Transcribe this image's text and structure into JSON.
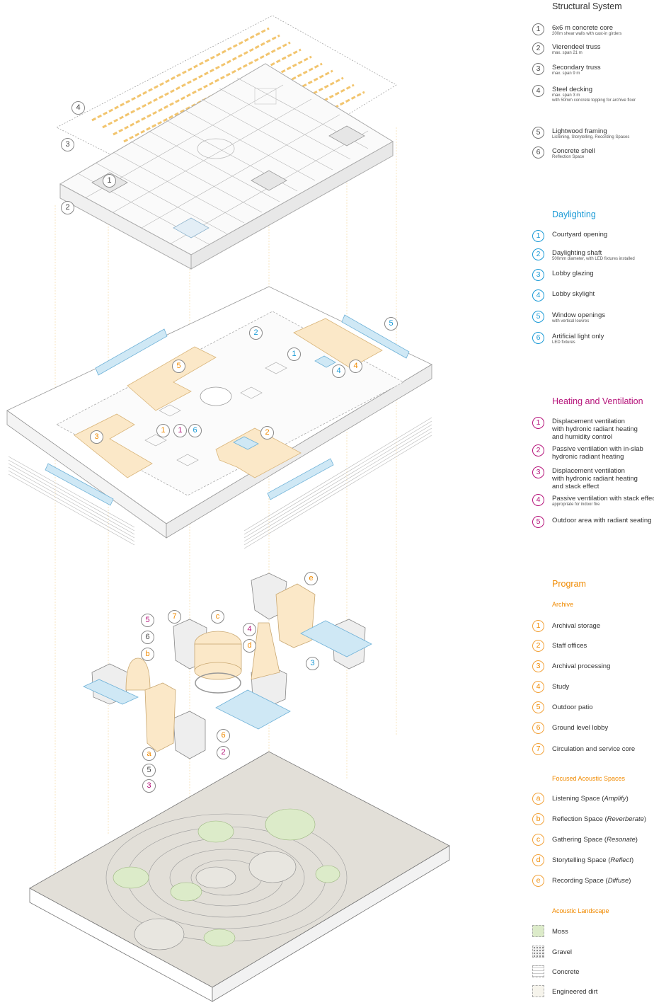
{
  "colors": {
    "structure": "#777777",
    "daylight": "#1a9ad6",
    "heating": "#b5137a",
    "program": "#f08a00",
    "highlight_fill": "#fbe8c8",
    "glass_fill": "#cfe8f5",
    "moss": "#dcebc9",
    "ground": "#d9d6cf"
  },
  "legend": {
    "structural": {
      "title": "Structural System",
      "items": [
        {
          "num": "1",
          "label": "6x6 m concrete core",
          "note": "200m shear walls with cast-in girders"
        },
        {
          "num": "2",
          "label": "Vierendeel truss",
          "note": "max. span 21 m"
        },
        {
          "num": "3",
          "label": "Secondary truss",
          "note": "max. span 9 m"
        },
        {
          "num": "4",
          "label": "Steel decking",
          "note": "max. span 3 m",
          "note2": "with 50mm concrete topping for archive floor"
        },
        {
          "num": "5",
          "label": "Lightwood framing",
          "note": "Listening, Storytelling, Recording Spaces"
        },
        {
          "num": "6",
          "label": "Concrete shell",
          "note": "Reflection Space"
        }
      ]
    },
    "daylighting": {
      "title": "Daylighting",
      "items": [
        {
          "num": "1",
          "label": "Courtyard opening",
          "note": ""
        },
        {
          "num": "2",
          "label": "Daylighting shaft",
          "note": "500mm diameter, with LED fixtures installed"
        },
        {
          "num": "3",
          "label": "Lobby glazing",
          "note": ""
        },
        {
          "num": "4",
          "label": "Lobby skylight",
          "note": ""
        },
        {
          "num": "5",
          "label": "Window openings",
          "note": "with vertical louvres"
        },
        {
          "num": "6",
          "label": "Artificial light only",
          "note": "LED fixtures"
        }
      ]
    },
    "heating": {
      "title": "Heating and Ventilation",
      "items": [
        {
          "num": "1",
          "l1": "Displacement ventilation",
          "l2": "with hydronic radiant heating",
          "l3": "and humidity control"
        },
        {
          "num": "2",
          "l1": "Passive ventilation with in-slab",
          "l2": "hydronic radiant heating",
          "l3": ""
        },
        {
          "num": "3",
          "l1": "Displacement ventilation",
          "l2": "with hydronic radiant heating",
          "l3": "and stack effect"
        },
        {
          "num": "4",
          "l1": "Passive ventilation with stack effect",
          "l2": "",
          "l3": "",
          "note": "appropriate for indoor fire"
        },
        {
          "num": "5",
          "l1": "Outdoor area with radiant seating",
          "l2": "",
          "l3": ""
        }
      ]
    },
    "program": {
      "title": "Program",
      "archive_title": "Archive",
      "archive": [
        {
          "num": "1",
          "label": "Archival storage"
        },
        {
          "num": "2",
          "label": "Staff offices"
        },
        {
          "num": "3",
          "label": "Archival processing"
        },
        {
          "num": "4",
          "label": "Study"
        },
        {
          "num": "5",
          "label": "Outdoor patio"
        },
        {
          "num": "6",
          "label": "Ground level lobby"
        },
        {
          "num": "7",
          "label": "Circulation and service core"
        }
      ],
      "acoustic_title": "Focused Acoustic Spaces",
      "acoustic": [
        {
          "num": "a",
          "label": "Listening Space (",
          "em": "Amplify",
          "end": ")"
        },
        {
          "num": "b",
          "label": "Reflection Space (",
          "em": "Reverberate",
          "end": ")"
        },
        {
          "num": "c",
          "label": "Gathering Space (",
          "em": "Resonate",
          "end": ")"
        },
        {
          "num": "d",
          "label": "Storytelling Space (",
          "em": "Reflect",
          "end": ")"
        },
        {
          "num": "e",
          "label": "Recording Space (",
          "em": "Diffuse",
          "end": ")"
        }
      ],
      "landscape_title": "Acoustic Landscape",
      "landscape": [
        {
          "label": "Moss",
          "swatch": "moss-swatch"
        },
        {
          "label": "Gravel",
          "swatch": "gravel-swatch"
        },
        {
          "label": "Concrete",
          "swatch": "concrete-swatch"
        },
        {
          "label": "Engineered dirt",
          "swatch": "dirt-swatch"
        }
      ]
    }
  },
  "callouts": {
    "roof": [
      "4",
      "3",
      "1",
      "2"
    ],
    "floor": [
      "5",
      "2",
      "1",
      "4",
      "4",
      "3",
      "1",
      "1",
      "6",
      "2"
    ],
    "volumes": [
      "5",
      "6",
      "b",
      "7",
      "c",
      "4",
      "d",
      "e",
      "3",
      "6",
      "2",
      "a",
      "5",
      "3"
    ]
  }
}
